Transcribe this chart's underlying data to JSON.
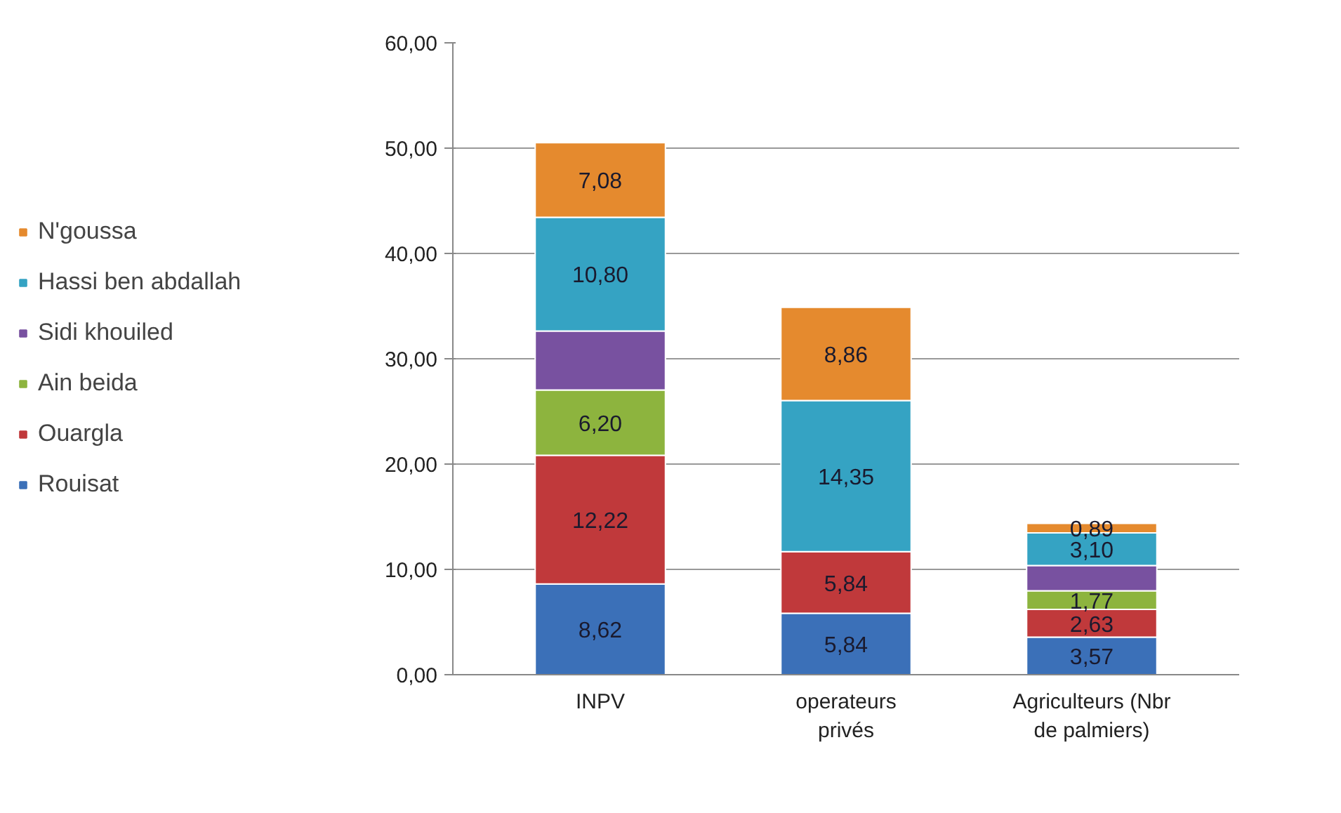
{
  "chart_data": {
    "type": "bar",
    "stacked": true,
    "categories": [
      "INPV",
      "operateurs\nprivés",
      "Agriculteurs (Nbr\nde palmiers)"
    ],
    "series": [
      {
        "name": "Rouisat",
        "color": "#3b70b8",
        "values": [
          8.62,
          5.84,
          3.57
        ],
        "value_labels": [
          "8,62",
          "5,84",
          "3,57"
        ]
      },
      {
        "name": "Ouargla",
        "color": "#c0393b",
        "values": [
          12.22,
          5.84,
          2.63
        ],
        "value_labels": [
          "12,22",
          "5,84",
          "2,63"
        ]
      },
      {
        "name": "Ain beida",
        "color": "#8db43e",
        "values": [
          6.2,
          null,
          1.77
        ],
        "value_labels": [
          "6,20",
          null,
          "1,77"
        ]
      },
      {
        "name": "Sidi khouiled",
        "color": "#7851a0",
        "values": [
          5.6,
          null,
          2.4
        ],
        "value_labels": [
          null,
          null,
          null
        ]
      },
      {
        "name": "Hassi ben abdallah",
        "color": "#35a3c3",
        "values": [
          10.8,
          14.35,
          3.1
        ],
        "value_labels": [
          "10,80",
          "14,35",
          "3,10"
        ]
      },
      {
        "name": "N'goussa",
        "color": "#e58a2e",
        "values": [
          7.08,
          8.86,
          0.89
        ],
        "value_labels": [
          "7,08",
          "8,86",
          "0,89"
        ]
      }
    ],
    "ylim": [
      0,
      60
    ],
    "yticks": [
      {
        "value": 0,
        "label": "0,00"
      },
      {
        "value": 10,
        "label": "10,00"
      },
      {
        "value": 20,
        "label": "20,00"
      },
      {
        "value": 30,
        "label": "30,00"
      },
      {
        "value": 40,
        "label": "40,00"
      },
      {
        "value": 50,
        "label": "50,00"
      },
      {
        "value": 60,
        "label": "60,00"
      }
    ],
    "grid": "y",
    "legend": "left"
  }
}
